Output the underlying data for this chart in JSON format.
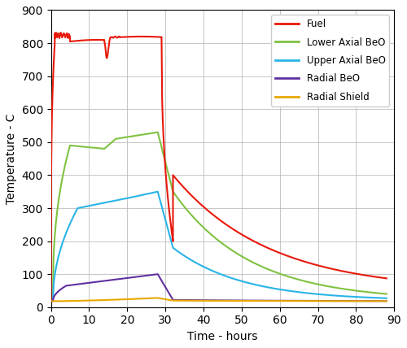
{
  "title": "",
  "xlabel": "Time - hours",
  "ylabel": "Temperature - C",
  "xlim": [
    0,
    90
  ],
  "ylim": [
    0,
    900
  ],
  "xticks": [
    0,
    10,
    20,
    30,
    40,
    50,
    60,
    70,
    80,
    90
  ],
  "yticks": [
    0,
    100,
    200,
    300,
    400,
    500,
    600,
    700,
    800,
    900
  ],
  "legend_labels": [
    "Fuel",
    "Lower Axial BeO",
    "Upper Axial BeO",
    "Radial BeO",
    "Radial Shield"
  ],
  "legend_colors": [
    "#e8190b",
    "#7fc241",
    "#29b4e8",
    "#6030a0",
    "#e8a800"
  ],
  "background_color": "#ffffff",
  "grid_color": "#b0b0b0"
}
